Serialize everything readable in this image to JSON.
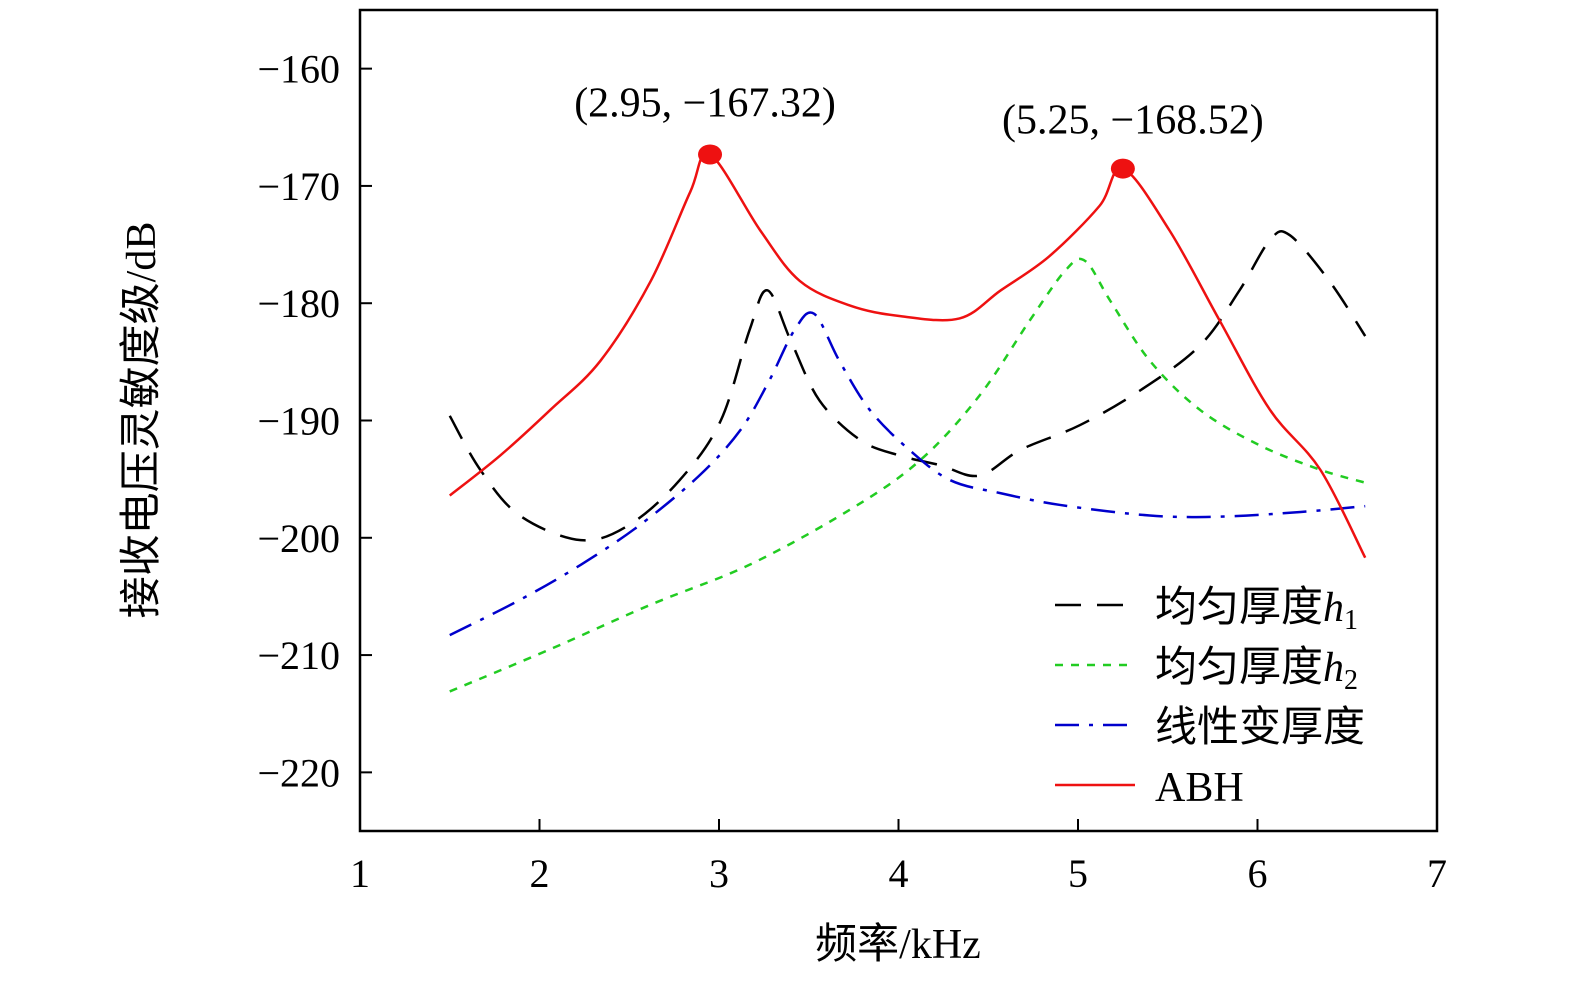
{
  "chart_data": {
    "type": "line",
    "title": "",
    "xlabel": "频率/kHz",
    "ylabel": "接收电压灵敏度级/dB",
    "xlim": [
      1,
      7
    ],
    "ylim": [
      -225,
      -155
    ],
    "xticks": [
      1,
      2,
      3,
      4,
      5,
      6,
      7
    ],
    "yticks": [
      -160,
      -170,
      -180,
      -190,
      -200,
      -210,
      -220
    ],
    "xtick_labels": [
      "1",
      "2",
      "3",
      "4",
      "5",
      "6",
      "7"
    ],
    "ytick_labels": [
      "−160",
      "−170",
      "−180",
      "−190",
      "−200",
      "−210",
      "−220"
    ],
    "grid": false,
    "legend_placement": "bottom-right",
    "series": [
      {
        "name": "均匀厚度h1",
        "label_main": "均匀厚度",
        "label_var": "h",
        "label_sub": "1",
        "color": "#000000",
        "dash": "dashed",
        "x": [
          1.5,
          1.67,
          1.89,
          2.23,
          2.5,
          2.78,
          3.01,
          3.17,
          3.27,
          3.4,
          3.56,
          3.79,
          4.01,
          4.23,
          4.45,
          4.68,
          5.01,
          5.35,
          5.68,
          5.9,
          6.07,
          6.18,
          6.4,
          6.6
        ],
        "y": [
          -189.6,
          -194.2,
          -198.1,
          -200.2,
          -198.9,
          -195.1,
          -190,
          -182.3,
          -178.9,
          -183.2,
          -188.3,
          -191.7,
          -193,
          -193.8,
          -194.7,
          -192.5,
          -190.4,
          -187.4,
          -183.6,
          -178.9,
          -174.6,
          -174.2,
          -178.1,
          -182.8
        ]
      },
      {
        "name": "均匀厚度h2",
        "label_main": "均匀厚度",
        "label_var": "h",
        "label_sub": "2",
        "color": "#22cc22",
        "dash": "dotted",
        "x": [
          1.5,
          2.06,
          2.62,
          3.17,
          3.73,
          4.12,
          4.45,
          4.73,
          4.93,
          5.04,
          5.18,
          5.4,
          5.68,
          6.01,
          6.35,
          6.6
        ],
        "y": [
          -213.1,
          -209.5,
          -205.7,
          -202.3,
          -197.6,
          -193.4,
          -187.9,
          -181.5,
          -177.2,
          -176.4,
          -179.8,
          -184.9,
          -189.1,
          -192.1,
          -194.2,
          -195.3
        ]
      },
      {
        "name": "线性变厚度",
        "label_main": "线性变厚度",
        "label_var": "",
        "label_sub": "",
        "color": "#0000cc",
        "dash": "dashdot",
        "x": [
          1.5,
          1.89,
          2.23,
          2.56,
          2.89,
          3.12,
          3.28,
          3.42,
          3.53,
          3.67,
          3.84,
          4.06,
          4.29,
          4.57,
          4.9,
          5.4,
          5.79,
          6.24,
          6.6
        ],
        "y": [
          -208.3,
          -205.3,
          -202.3,
          -198.9,
          -194.7,
          -190.8,
          -186.6,
          -182.3,
          -180.9,
          -184.9,
          -189.1,
          -192.5,
          -195.1,
          -196.2,
          -197.2,
          -198.1,
          -198.2,
          -197.8,
          -197.3
        ]
      },
      {
        "name": "ABH",
        "label_main": "ABH",
        "label_var": "",
        "label_sub": "",
        "color": "#ee1111",
        "dash": "solid",
        "x": [
          1.5,
          1.78,
          2.06,
          2.34,
          2.62,
          2.84,
          2.95,
          3.23,
          3.45,
          3.73,
          4.01,
          4.34,
          4.57,
          4.84,
          5.12,
          5.25,
          5.51,
          5.79,
          6.07,
          6.35,
          6.6
        ],
        "y": [
          -196.4,
          -193,
          -189.1,
          -184.9,
          -178.1,
          -170.5,
          -167.32,
          -173.8,
          -178.1,
          -180.2,
          -181.1,
          -181.3,
          -178.9,
          -176,
          -171.7,
          -168.52,
          -173.8,
          -181.5,
          -189.1,
          -194.2,
          -201.7
        ]
      }
    ],
    "annotations": [
      {
        "text": "(2.95, −167.32)",
        "x": 2.95,
        "y": -167.32
      },
      {
        "text": "(5.25, −168.52)",
        "x": 5.25,
        "y": -168.52
      }
    ]
  }
}
